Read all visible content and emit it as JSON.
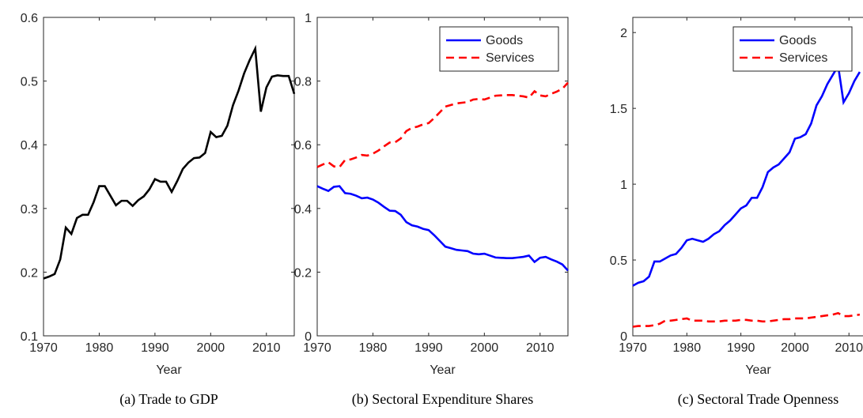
{
  "chart_data": [
    {
      "type": "line",
      "caption": "(a) Trade to GDP",
      "xlabel": "Year",
      "x": [
        1970,
        1971,
        1972,
        1973,
        1974,
        1975,
        1976,
        1977,
        1978,
        1979,
        1980,
        1981,
        1982,
        1983,
        1984,
        1985,
        1986,
        1987,
        1988,
        1989,
        1990,
        1991,
        1992,
        1993,
        1994,
        1995,
        1996,
        1997,
        1998,
        1999,
        2000,
        2001,
        2002,
        2003,
        2004,
        2005,
        2006,
        2007,
        2008,
        2009,
        2010,
        2011,
        2012,
        2013,
        2014,
        2015
      ],
      "color": "#000000",
      "values": [
        0.19,
        0.193,
        0.197,
        0.22,
        0.27,
        0.26,
        0.285,
        0.29,
        0.29,
        0.31,
        0.335,
        0.335,
        0.32,
        0.305,
        0.312,
        0.312,
        0.304,
        0.313,
        0.319,
        0.33,
        0.346,
        0.342,
        0.342,
        0.326,
        0.343,
        0.362,
        0.372,
        0.379,
        0.38,
        0.387,
        0.42,
        0.412,
        0.414,
        0.43,
        0.462,
        0.485,
        0.512,
        0.533,
        0.551,
        0.452,
        0.49,
        0.507,
        0.509,
        0.508,
        0.508,
        0.48
      ],
      "xlim": [
        1970,
        2015
      ],
      "ylim": [
        0.1,
        0.6
      ],
      "xticks": [
        1970,
        1980,
        1990,
        2000,
        2010
      ],
      "yticks": [
        0.1,
        0.2,
        0.3,
        0.4,
        0.5,
        0.6
      ]
    },
    {
      "type": "line",
      "caption": "(b) Sectoral Expenditure Shares",
      "xlabel": "Year",
      "x": [
        1970,
        1971,
        1972,
        1973,
        1974,
        1975,
        1976,
        1977,
        1978,
        1979,
        1980,
        1981,
        1982,
        1983,
        1984,
        1985,
        1986,
        1987,
        1988,
        1989,
        1990,
        1991,
        1992,
        1993,
        1994,
        1995,
        1996,
        1997,
        1998,
        1999,
        2000,
        2001,
        2002,
        2003,
        2004,
        2005,
        2006,
        2007,
        2008,
        2009,
        2010,
        2011,
        2012,
        2013,
        2014,
        2015
      ],
      "series": [
        {
          "name": "Goods",
          "color": "#0000ff",
          "dash": false,
          "values": [
            0.47,
            0.462,
            0.455,
            0.468,
            0.47,
            0.448,
            0.446,
            0.44,
            0.432,
            0.434,
            0.428,
            0.418,
            0.405,
            0.393,
            0.392,
            0.38,
            0.357,
            0.347,
            0.343,
            0.336,
            0.332,
            0.316,
            0.298,
            0.28,
            0.275,
            0.27,
            0.268,
            0.266,
            0.258,
            0.256,
            0.258,
            0.252,
            0.246,
            0.245,
            0.244,
            0.244,
            0.246,
            0.248,
            0.252,
            0.232,
            0.245,
            0.248,
            0.24,
            0.233,
            0.224,
            0.205
          ]
        },
        {
          "name": "Services",
          "color": "#ff0000",
          "dash": true,
          "values": [
            0.53,
            0.538,
            0.545,
            0.532,
            0.53,
            0.552,
            0.554,
            0.56,
            0.568,
            0.566,
            0.572,
            0.582,
            0.595,
            0.607,
            0.608,
            0.62,
            0.643,
            0.653,
            0.657,
            0.664,
            0.668,
            0.684,
            0.702,
            0.72,
            0.725,
            0.73,
            0.732,
            0.734,
            0.742,
            0.744,
            0.742,
            0.748,
            0.754,
            0.755,
            0.756,
            0.756,
            0.754,
            0.752,
            0.748,
            0.768,
            0.755,
            0.752,
            0.76,
            0.767,
            0.776,
            0.795
          ]
        }
      ],
      "legend": "upper right",
      "xlim": [
        1970,
        2015
      ],
      "ylim": [
        0,
        1
      ],
      "xticks": [
        1970,
        1980,
        1990,
        2000,
        2010
      ],
      "yticks": [
        0,
        0.2,
        0.4,
        0.6,
        0.8,
        1
      ]
    },
    {
      "type": "line",
      "caption": "(c) Sectoral Trade Openness",
      "xlabel": "Year",
      "x": [
        1970,
        1971,
        1972,
        1973,
        1974,
        1975,
        1976,
        1977,
        1978,
        1979,
        1980,
        1981,
        1982,
        1983,
        1984,
        1985,
        1986,
        1987,
        1988,
        1989,
        1990,
        1991,
        1992,
        1993,
        1994,
        1995,
        1996,
        1997,
        1998,
        1999,
        2000,
        2001,
        2002,
        2003,
        2004,
        2005,
        2006,
        2007,
        2008,
        2009,
        2010,
        2011,
        2012
      ],
      "series": [
        {
          "name": "Goods",
          "color": "#0000ff",
          "dash": false,
          "values": [
            0.33,
            0.35,
            0.36,
            0.39,
            0.49,
            0.49,
            0.51,
            0.53,
            0.54,
            0.58,
            0.63,
            0.64,
            0.63,
            0.62,
            0.64,
            0.67,
            0.69,
            0.73,
            0.76,
            0.8,
            0.84,
            0.86,
            0.91,
            0.91,
            0.98,
            1.08,
            1.11,
            1.13,
            1.17,
            1.21,
            1.3,
            1.31,
            1.33,
            1.4,
            1.52,
            1.58,
            1.66,
            1.72,
            1.78,
            1.54,
            1.6,
            1.68,
            1.74
          ]
        },
        {
          "name": "Services",
          "color": "#ff0000",
          "dash": true,
          "values": [
            0.06,
            0.065,
            0.065,
            0.065,
            0.07,
            0.08,
            0.1,
            0.1,
            0.105,
            0.11,
            0.115,
            0.1,
            0.1,
            0.1,
            0.095,
            0.095,
            0.095,
            0.1,
            0.1,
            0.1,
            0.105,
            0.105,
            0.1,
            0.1,
            0.095,
            0.095,
            0.1,
            0.105,
            0.11,
            0.11,
            0.115,
            0.115,
            0.115,
            0.12,
            0.125,
            0.13,
            0.135,
            0.14,
            0.15,
            0.13,
            0.13,
            0.135,
            0.14
          ]
        }
      ],
      "legend": "upper right",
      "xlim": [
        1970,
        2012.6
      ],
      "ylim": [
        0,
        2.1
      ],
      "xticks": [
        1970,
        1980,
        1990,
        2000,
        2010
      ],
      "yticks": [
        0,
        0.5,
        1,
        1.5,
        2
      ]
    }
  ]
}
